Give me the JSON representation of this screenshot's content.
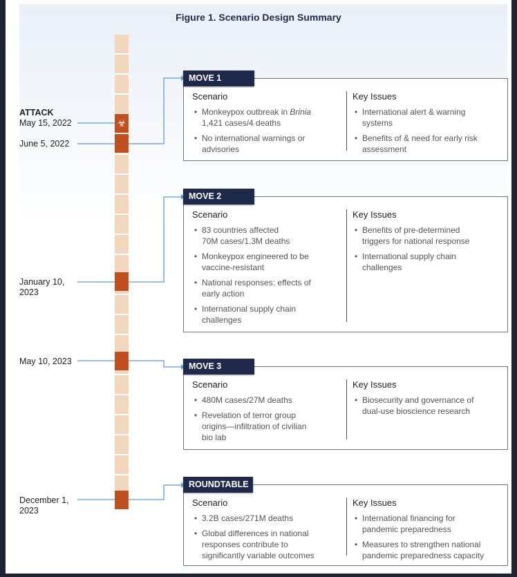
{
  "title": "Figure 1. Scenario Design Summary",
  "colors": {
    "header": "#1f2a4a",
    "event": "#c2501e",
    "timeline": "#f1d8bd",
    "connector": "#5a9bd8"
  },
  "timeline": {
    "attack_label": "ATTACK",
    "attack_icon": "biohazard-icon",
    "dates": [
      "May 15, 2022",
      "June 5, 2022",
      "January 10,\n2023",
      "May 10, 2023",
      "December 1,\n2023"
    ]
  },
  "moves": [
    {
      "label": "MOVE 1",
      "scenario_heading": "Scenario",
      "issues_heading": "Key Issues",
      "scenario": [
        "Monkeypox outbreak in Brinia\n1,421 cases/4 deaths",
        "No international warnings or\nadvisories"
      ],
      "issues": [
        "International alert & warning\nsystems",
        "Benefits of & need for early risk\nassessment"
      ]
    },
    {
      "label": "MOVE 2",
      "scenario_heading": "Scenario",
      "issues_heading": "Key Issues",
      "scenario": [
        "83 countries affected\n70M cases/1.3M deaths",
        "Monkeypox engineered to be\nvaccine-resistant",
        "National responses: effects of\nearly action",
        "International supply chain\nchallenges"
      ],
      "issues": [
        "Benefits of pre-determined\ntriggers for national response",
        "International supply chain\nchallenges"
      ]
    },
    {
      "label": "MOVE 3",
      "scenario_heading": "Scenario",
      "issues_heading": "Key Issues",
      "scenario": [
        "480M cases/27M deaths",
        "Revelation of terror group\norigins—infiltration of civilian\nbio lab"
      ],
      "issues": [
        "Biosecurity and governance of\ndual-use bioscience research"
      ]
    },
    {
      "label": "ROUNDTABLE",
      "scenario_heading": "Scenario",
      "issues_heading": "Key Issues",
      "scenario": [
        "3.2B cases/271M deaths",
        "Global differences in national\nresponses contribute to\nsignificantly variable outcomes"
      ],
      "issues": [
        "International financing for\npandemic preparedness",
        "Measures to strengthen national\npandemic preparedness capacity"
      ]
    }
  ]
}
